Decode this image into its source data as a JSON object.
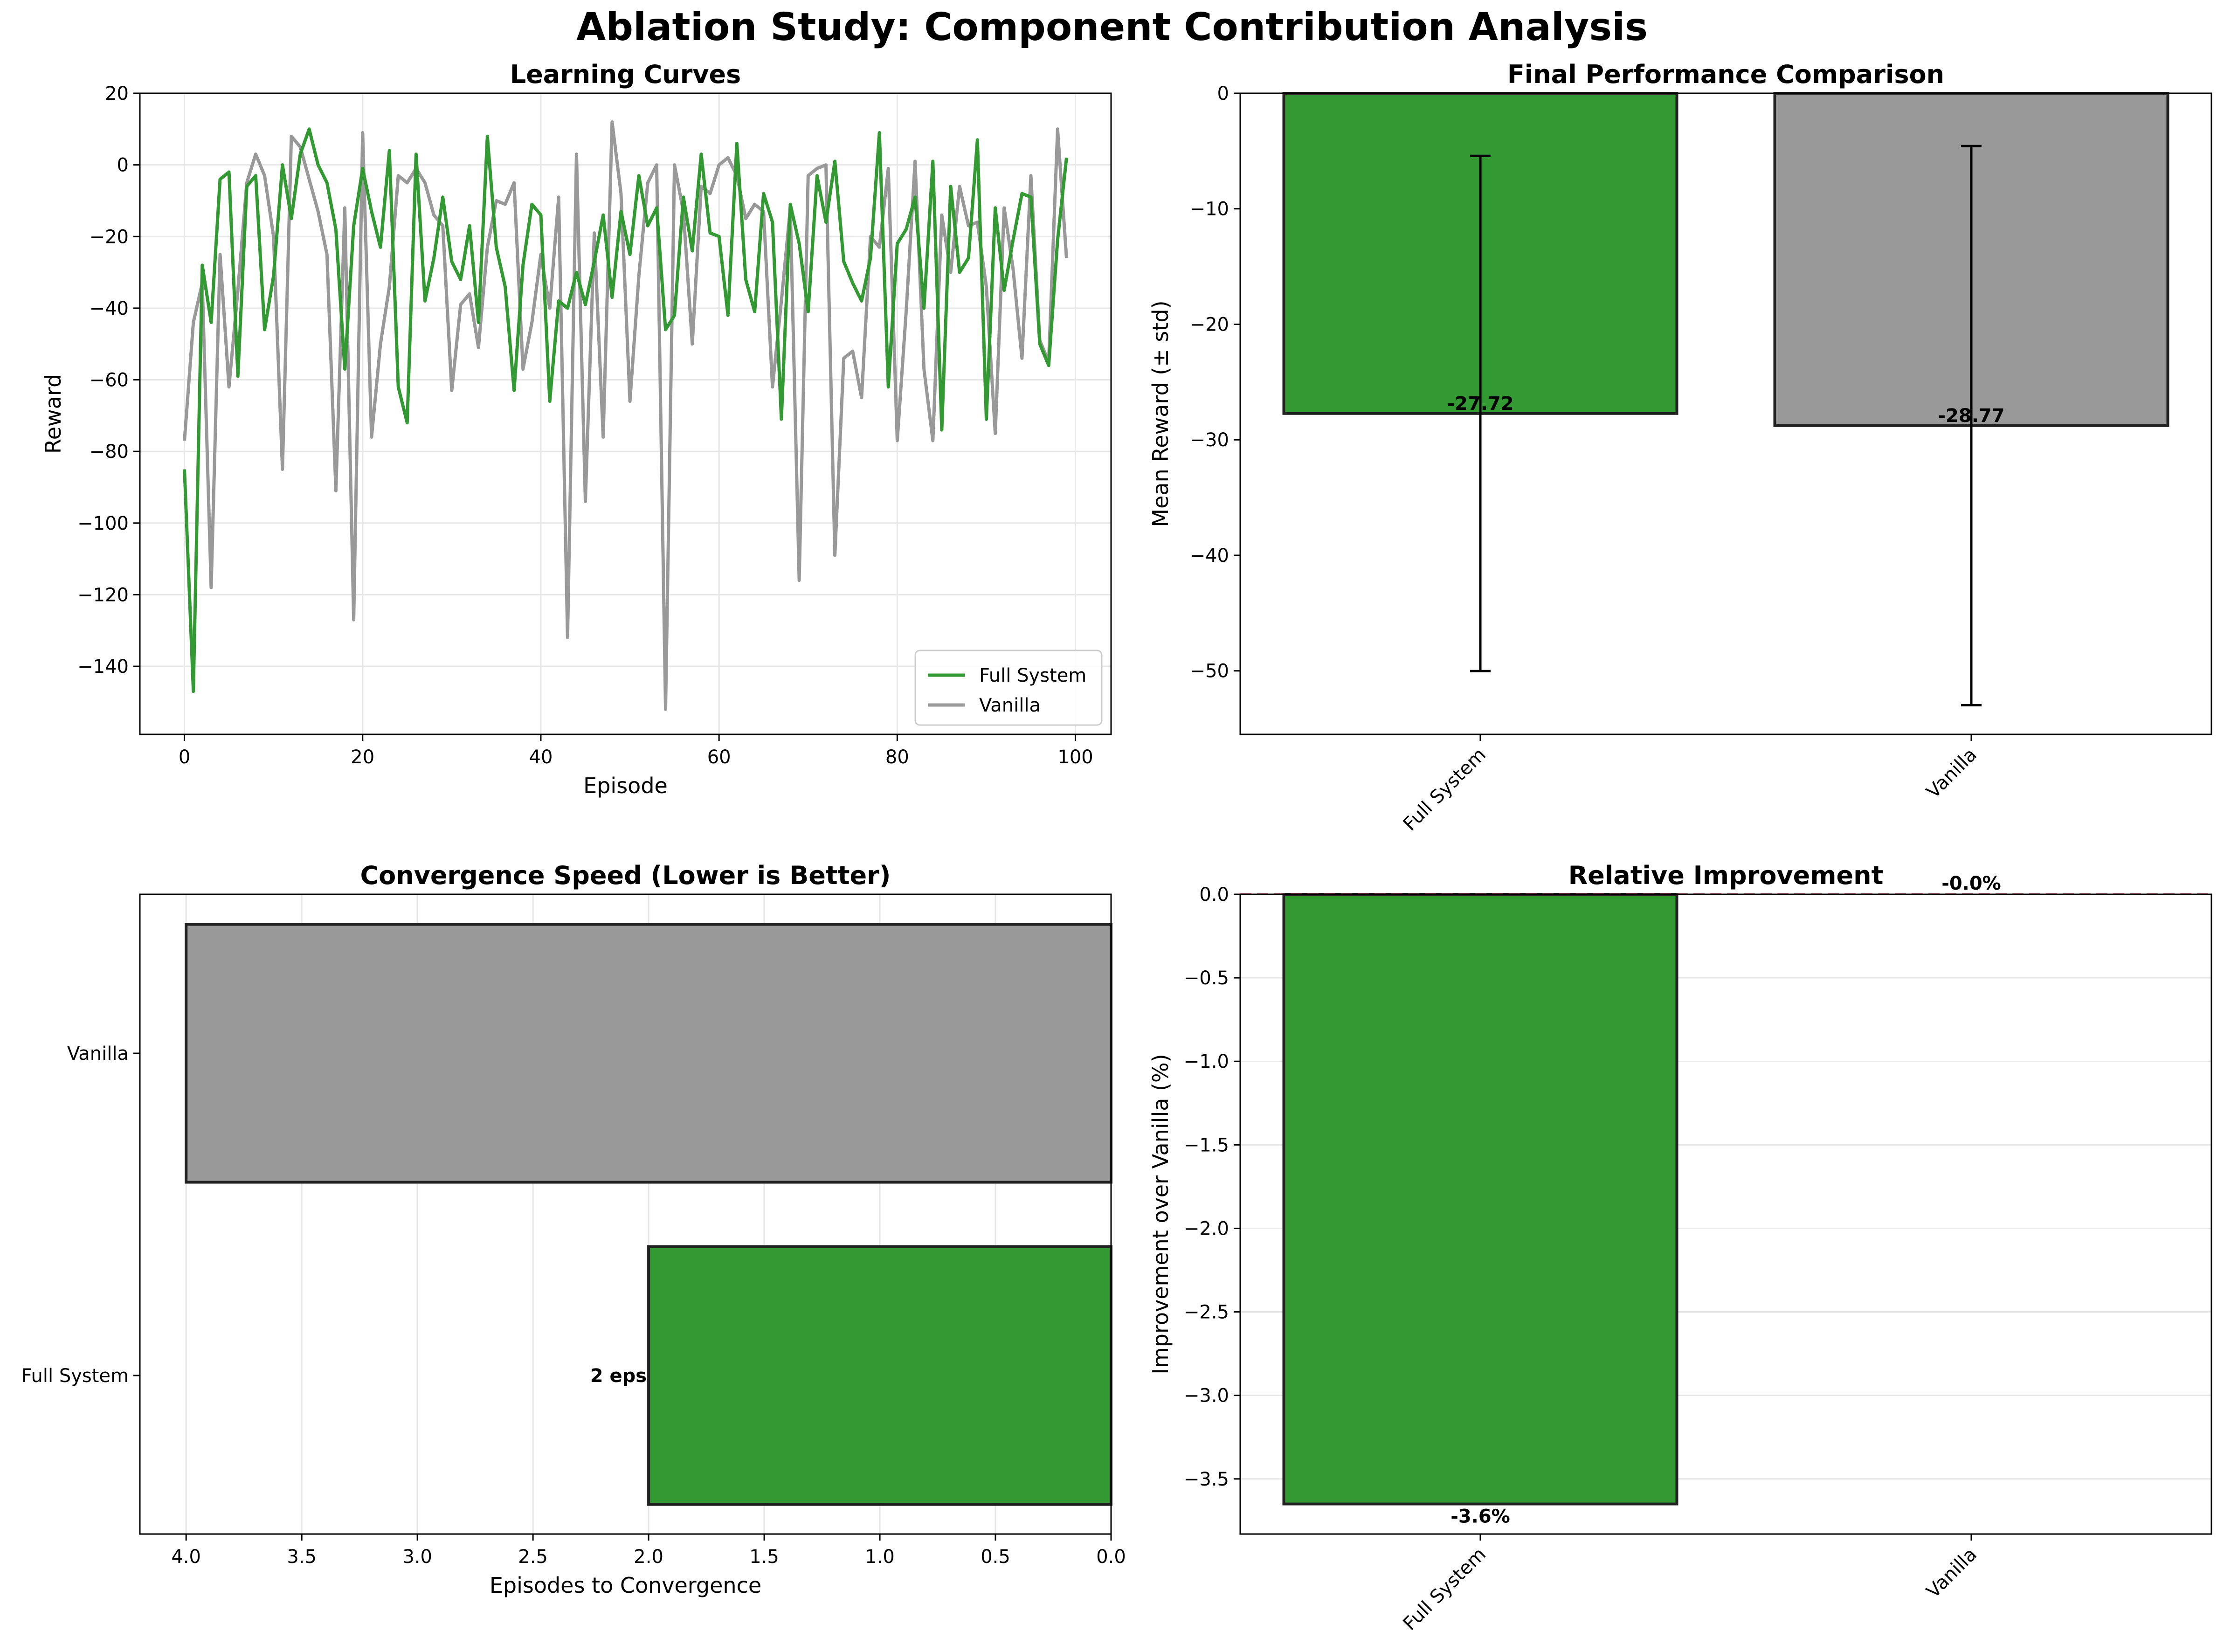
{
  "suptitle": "Ablation Study: Component Contribution Analysis",
  "colors": {
    "full": "#339933",
    "vanilla": "#999999",
    "grid": "#e6e6e6",
    "edge": "#222222",
    "zero_line": "#b05050"
  },
  "chart_data": [
    {
      "type": "line",
      "title": "Learning Curves",
      "xlabel": "Episode",
      "ylabel": "Reward",
      "xlim": [
        -5,
        104
      ],
      "ylim": [
        -159,
        20
      ],
      "xticks": [
        0,
        20,
        40,
        60,
        80,
        100
      ],
      "yticks": [
        20,
        0,
        -20,
        -40,
        -60,
        -80,
        -100,
        -120,
        -140
      ],
      "grid": true,
      "legend_position": "lower-right",
      "series": [
        {
          "name": "Full System",
          "color": "#339933",
          "values": [
            -85,
            -147,
            -28,
            -44,
            -4,
            -2,
            -59,
            -6,
            -3,
            -46,
            -31,
            0,
            -15,
            3,
            10,
            0,
            -5,
            -18,
            -57,
            -17,
            -1,
            -13,
            -23,
            4,
            -62,
            -72,
            3,
            -38,
            -26,
            -9,
            -27,
            -32,
            -17,
            -44,
            8,
            -23,
            -34,
            -63,
            -28,
            -11,
            -14,
            -66,
            -38,
            -40,
            -30,
            -39,
            -27,
            -14,
            -37,
            -13,
            -25,
            -3,
            -17,
            -12,
            -46,
            -42,
            -9,
            -24,
            3,
            -19,
            -20,
            -42,
            6,
            -32,
            -41,
            -8,
            -16,
            -71,
            -11,
            -22,
            -41,
            -3,
            -16,
            1,
            -27,
            -33,
            -38,
            -26,
            9,
            -62,
            -22,
            -18,
            -9,
            -40,
            1,
            -74,
            -6,
            -30,
            -26,
            7,
            -71,
            -12,
            -35,
            -21,
            -8,
            -9,
            -50,
            -56,
            -21,
            2
          ]
        },
        {
          "name": "Vanilla",
          "color": "#999999",
          "values": [
            -77,
            -44,
            -33,
            -118,
            -25,
            -62,
            -35,
            -5,
            3,
            -3,
            -20,
            -85,
            8,
            5,
            -4,
            -13,
            -25,
            -91,
            -12,
            -127,
            9,
            -76,
            -50,
            -34,
            -3,
            -5,
            -1,
            -5,
            -14,
            -17,
            -63,
            -39,
            -36,
            -51,
            -23,
            -10,
            -11,
            -5,
            -57,
            -44,
            -25,
            -40,
            -9,
            -132,
            3,
            -94,
            -19,
            -76,
            12,
            -8,
            -66,
            -31,
            -5,
            0,
            -152,
            0,
            -13,
            -50,
            -6,
            -8,
            0,
            2,
            -3,
            -15,
            -11,
            -13,
            -62,
            -38,
            -12,
            -116,
            -3,
            -1,
            0,
            -109,
            -54,
            -52,
            -65,
            -20,
            -23,
            -1,
            -77,
            -41,
            1,
            -57,
            -77,
            -14,
            -30,
            -6,
            -17,
            -16,
            -34,
            -75,
            -12,
            -29,
            -54,
            -3,
            -49,
            -55,
            10,
            -26
          ]
        }
      ]
    },
    {
      "type": "bar",
      "title": "Final Performance Comparison",
      "xlabel": "",
      "ylabel": "Mean Reward (± std)",
      "categories": [
        "Full System",
        "Vanilla"
      ],
      "values": [
        -27.72,
        -28.77
      ],
      "errors": [
        22.3,
        24.2
      ],
      "data_labels": [
        "-27.72",
        "-28.77"
      ],
      "colors": [
        "#339933",
        "#999999"
      ],
      "ylim": [
        -55.5,
        0
      ],
      "yticks": [
        0,
        -10,
        -20,
        -30,
        -40,
        -50
      ],
      "grid": false
    },
    {
      "type": "bar",
      "orientation": "horizontal",
      "title": "Convergence Speed (Lower is Better)",
      "xlabel": "Episodes to Convergence",
      "ylabel": "",
      "categories": [
        "Vanilla",
        "Full System"
      ],
      "values": [
        4,
        2
      ],
      "data_labels": [
        "",
        "2 eps"
      ],
      "colors": [
        "#999999",
        "#339933"
      ],
      "xlim": [
        4.2,
        0
      ],
      "xticks": [
        4.0,
        3.5,
        3.0,
        2.5,
        2.0,
        1.5,
        1.0,
        0.5,
        0.0
      ],
      "x_inverted": true,
      "grid": true
    },
    {
      "type": "bar",
      "title": "Relative Improvement",
      "xlabel": "",
      "ylabel": "Improvement over Vanilla (%)",
      "categories": [
        "Full System",
        "Vanilla"
      ],
      "values": [
        -3.65,
        0
      ],
      "data_labels": [
        "-3.6%",
        "-0.0%"
      ],
      "colors": [
        "#339933",
        "#999999"
      ],
      "ylim": [
        -3.83,
        0
      ],
      "yticks": [
        0.0,
        -0.5,
        -1.0,
        -1.5,
        -2.0,
        -2.5,
        -3.0,
        -3.5
      ],
      "grid": true
    }
  ]
}
